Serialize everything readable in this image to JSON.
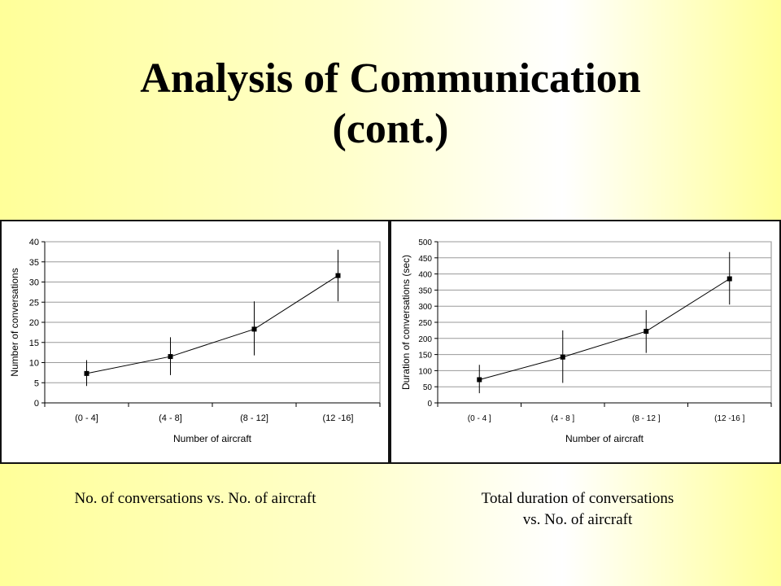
{
  "title": {
    "line1": "Analysis of Communication",
    "line2": "(cont.)"
  },
  "captions": {
    "left": [
      "No. of conversations vs. No. of aircraft"
    ],
    "right": [
      "Total duration of conversations",
      "vs. No. of aircraft"
    ]
  },
  "chart_data": [
    {
      "type": "line",
      "title": "",
      "xlabel": "Number of aircraft",
      "ylabel": "Number of conversations",
      "categories": [
        "(0 - 4]",
        "(4 - 8]",
        "(8 - 12]",
        "(12 -16]"
      ],
      "series": [
        {
          "values": [
            7.3,
            11.5,
            18.3,
            31.6
          ],
          "error_low": [
            4.2,
            6.9,
            11.8,
            25.2
          ],
          "error_high": [
            10.6,
            16.3,
            25.2,
            38.0
          ]
        }
      ],
      "ylim": [
        0,
        40
      ],
      "yticks": [
        0,
        5,
        10,
        15,
        20,
        25,
        30,
        35,
        40
      ],
      "grid": true,
      "legend": "none",
      "color": "#000000"
    },
    {
      "type": "line",
      "title": "",
      "xlabel": "Number of aircraft",
      "ylabel": "Duration of conversations (sec)",
      "categories": [
        "(0 - 4 ]",
        "(4 - 8 ]",
        "(8 - 12 ]",
        "(12 -16 ]"
      ],
      "series": [
        {
          "values": [
            72,
            142,
            222,
            385
          ],
          "error_low": [
            30,
            62,
            155,
            305
          ],
          "error_high": [
            118,
            225,
            288,
            468
          ]
        }
      ],
      "ylim": [
        0,
        500
      ],
      "yticks": [
        0,
        50,
        100,
        150,
        200,
        250,
        300,
        350,
        400,
        450,
        500
      ],
      "grid": true,
      "legend": "none",
      "color": "#000000"
    }
  ]
}
